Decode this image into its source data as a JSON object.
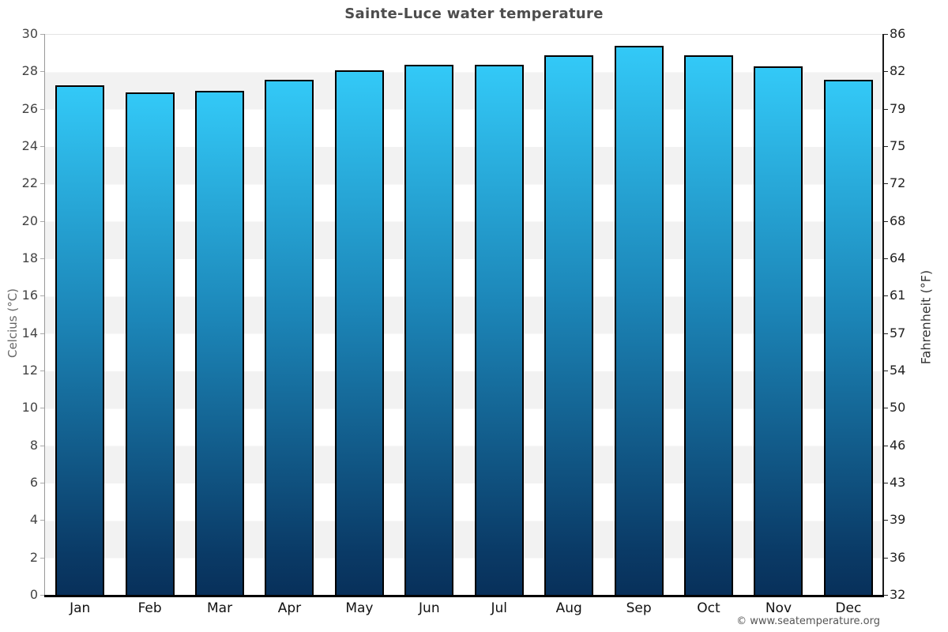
{
  "title": "Sainte-Luce water temperature",
  "chart_data": {
    "type": "bar",
    "title": "Sainte-Luce water temperature",
    "categories": [
      "Jan",
      "Feb",
      "Mar",
      "Apr",
      "May",
      "Jun",
      "Jul",
      "Aug",
      "Sep",
      "Oct",
      "Nov",
      "Dec"
    ],
    "values": [
      27.3,
      26.9,
      27.0,
      27.6,
      28.1,
      28.4,
      28.4,
      28.9,
      29.4,
      28.9,
      28.3,
      27.6
    ],
    "xlabel": "",
    "ylabel_left": "Celcius (°C)",
    "ylabel_right": "Fahrenheit (°F)",
    "ylim": [
      0,
      30
    ],
    "celsius_ticks": [
      0,
      2,
      4,
      6,
      8,
      10,
      12,
      14,
      16,
      18,
      20,
      22,
      24,
      26,
      28,
      30
    ],
    "fahrenheit_ticks": [
      32,
      36,
      39,
      43,
      46,
      50,
      54,
      57,
      61,
      64,
      68,
      72,
      75,
      79,
      82,
      86
    ],
    "grid": "banded-horizontal",
    "legend": "none",
    "colors": {
      "bar_gradient_top": "#33c9f7",
      "bar_gradient_bottom": "#08305a",
      "bar_border": "#000000",
      "band_light": "#ffffff",
      "band_gray": "#f2f2f2",
      "axis_left_line": "#999999",
      "axis_right_line": "#1a1a1a",
      "axis_bottom_line": "#000000",
      "title_color": "#4d4d4d"
    }
  },
  "footer": {
    "copyright": "© www.seatemperature.org"
  }
}
